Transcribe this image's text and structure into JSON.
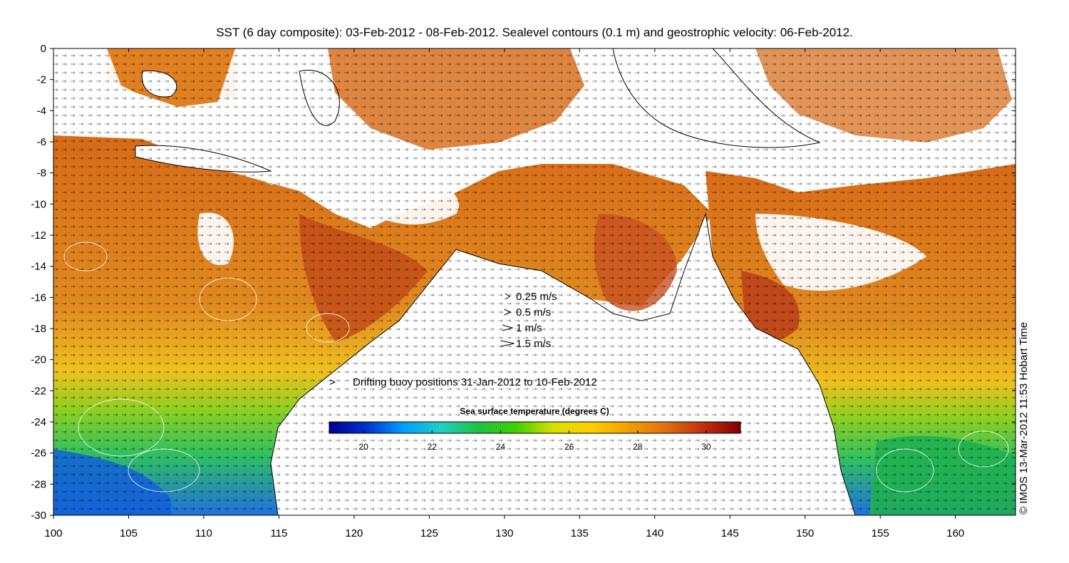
{
  "title": "SST (6 day composite): 03-Feb-2012 - 08-Feb-2012. Sealevel contours (0.1 m) and geostrophic velocity: 06-Feb-2012.",
  "axes": {
    "x_ticks": [
      "100",
      "105",
      "110",
      "115",
      "120",
      "125",
      "130",
      "135",
      "140",
      "145",
      "150",
      "155",
      "160"
    ],
    "y_ticks": [
      "0",
      "-2",
      "-4",
      "-6",
      "-8",
      "-10",
      "-12",
      "-14",
      "-16",
      "-18",
      "-20",
      "-22",
      "-24",
      "-26",
      "-28",
      "-30"
    ],
    "lon_range": [
      100,
      164
    ],
    "lat_range": [
      -30,
      0
    ]
  },
  "velocity_key": [
    {
      "label": "0.25 m/s",
      "speed": 0.25
    },
    {
      "label": "0.5 m/s",
      "speed": 0.5
    },
    {
      "label": "1 m/s",
      "speed": 1
    },
    {
      "label": "1.5 m/s",
      "speed": 1.5
    }
  ],
  "buoy_legend": {
    "symbol": ">",
    "label": "Drifting buoy positions 31-Jan-2012 to 10-Feb-2012",
    "color": "#e040e0"
  },
  "colorbar": {
    "title": "Sea surface temperature (degrees C)",
    "range": [
      19,
      31
    ],
    "tick_labels": [
      "20",
      "22",
      "24",
      "26",
      "28",
      "30"
    ],
    "stops": [
      "#00008f",
      "#0030d0",
      "#00a0ff",
      "#20d0c0",
      "#20c040",
      "#40d000",
      "#d8e000",
      "#ffd000",
      "#f0a000",
      "#e07010",
      "#c03010",
      "#800000"
    ]
  },
  "credit": "© IMOS 13-Mar-2012 11:53 Hobart Time",
  "colors": {
    "warm": "#e07a1a",
    "hot": "#b8401a",
    "mid": "#f0b020",
    "cool": "#40c040",
    "cold": "#2080e0",
    "cloud": "#ffffff"
  }
}
